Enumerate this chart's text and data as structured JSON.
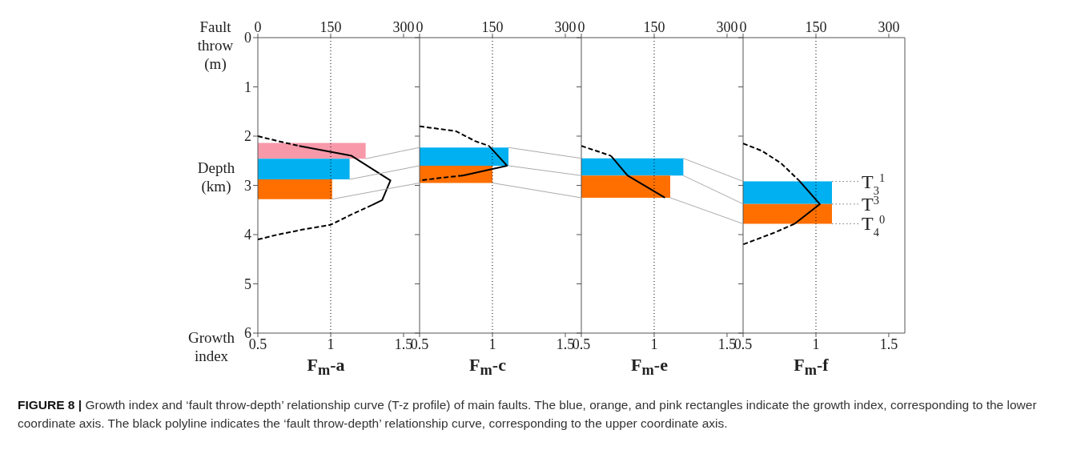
{
  "chart_data": [
    {
      "type": "histogram",
      "orientation": "horizontal",
      "title": "F$_{m}$-a",
      "xlabel": "Growth index",
      "x2label": "Fault throw (m)",
      "ylabel": "Depth (km)",
      "xlim": [
        0.5,
        1.61
      ],
      "xticks": [
        0.5,
        1,
        1.5
      ],
      "x2lim": [
        0,
        333
      ],
      "x2ticks": [
        0,
        150,
        300
      ],
      "ylim": [
        6,
        0
      ],
      "yticks": [
        0,
        1,
        2,
        3,
        4,
        5,
        6
      ],
      "ref_lines": [
        {
          "axis": "x",
          "value": 1,
          "line_style": "dotted",
          "color": "#000000"
        }
      ],
      "bins": [
        2.14,
        2.46,
        2.88,
        3.28
      ],
      "values": [
        1.24,
        1.13,
        1.01
      ],
      "colors": [
        "#f799a9",
        "#00b0f0",
        "#ff6f00"
      ],
      "series": [
        {
          "type": "line",
          "axis": "x2",
          "color": "#000000",
          "line_style": "dashed",
          "x": [
            2.0,
            2.1,
            2.2
          ],
          "values": [
            0,
            41,
            85
          ]
        },
        {
          "type": "line",
          "axis": "x2",
          "color": "#000000",
          "line_style": "solid",
          "x": [
            2.2,
            2.4,
            2.9,
            3.3,
            3.4
          ],
          "values": [
            85,
            193,
            273,
            256,
            235
          ]
        },
        {
          "type": "line",
          "axis": "x2",
          "color": "#000000",
          "line_style": "dashed",
          "x": [
            3.4,
            3.6,
            3.8,
            3.9,
            4.0,
            4.1
          ],
          "values": [
            235,
            191,
            150,
            91,
            41,
            0
          ]
        }
      ],
      "annotations": [
        "FIGURE 8 | Growth index and ‘fault throw-depth’ relationship curve (T-z profile) of main faults. The blue, orange, and pink rectangles indicate the growth index, corresponding to the lower coordinate axis. The black polyline indicates the ‘fault throw-depth’ relationship curve, corresponding to the upper coordinate axis."
      ]
    },
    {
      "type": "histogram",
      "orientation": "horizontal",
      "title": "F$_{m}$-c",
      "tick_labels": "x",
      "xlim": [
        0.5,
        1.61
      ],
      "xticks": [
        0.5,
        1,
        1.5
      ],
      "x2lim": [
        0,
        333
      ],
      "x2ticks": [
        0,
        150,
        300
      ],
      "ylim": [
        6,
        0
      ],
      "yticks": [
        0,
        1,
        2,
        3,
        4,
        5,
        6
      ],
      "ref_lines": [
        {
          "axis": "x",
          "value": 1,
          "line_style": "dotted",
          "color": "#000000"
        }
      ],
      "bins": [
        2.23,
        2.6,
        2.95
      ],
      "values": [
        1.11,
        1.0
      ],
      "colors": [
        "#00b0f0",
        "#ff6f00"
      ],
      "series": [
        {
          "type": "line",
          "axis": "x2",
          "color": "#000000",
          "line_style": "dashed",
          "x": [
            1.8,
            1.9,
            2.1,
            2.2
          ],
          "values": [
            0,
            75,
            114,
            143
          ]
        },
        {
          "type": "line",
          "axis": "x2",
          "color": "#000000",
          "line_style": "solid",
          "x": [
            2.2,
            2.6,
            2.8
          ],
          "values": [
            143,
            180,
            89
          ]
        },
        {
          "type": "line",
          "axis": "x2",
          "color": "#000000",
          "line_style": "dashed",
          "x": [
            2.8,
            2.85,
            2.9
          ],
          "values": [
            89,
            42,
            0
          ]
        }
      ]
    },
    {
      "type": "histogram",
      "orientation": "horizontal",
      "title": "F$_{m}$-e",
      "tick_labels": "x",
      "xlim": [
        0.5,
        1.61
      ],
      "xticks": [
        0.5,
        1,
        1.5
      ],
      "x2lim": [
        0,
        333
      ],
      "x2ticks": [
        0,
        150,
        300
      ],
      "ylim": [
        6,
        0
      ],
      "yticks": [
        0,
        1,
        2,
        3,
        4,
        5,
        6
      ],
      "ref_lines": [
        {
          "axis": "x",
          "value": 1,
          "line_style": "dotted",
          "color": "#000000"
        }
      ],
      "bins": [
        2.45,
        2.8,
        3.25
      ],
      "values": [
        1.2,
        1.11
      ],
      "colors": [
        "#00b0f0",
        "#ff6f00"
      ],
      "series": [
        {
          "type": "line",
          "axis": "x2",
          "color": "#000000",
          "line_style": "dashed",
          "x": [
            2.2,
            2.3,
            2.4
          ],
          "values": [
            0,
            31,
            61
          ]
        },
        {
          "type": "line",
          "axis": "x2",
          "color": "#000000",
          "line_style": "solid",
          "x": [
            2.4,
            2.8,
            3.25
          ],
          "values": [
            61,
            95,
            172
          ]
        }
      ]
    },
    {
      "type": "histogram",
      "orientation": "horizontal",
      "title": "F$_{m}$-f",
      "tick_labels": "x",
      "xlim": [
        0.5,
        1.61
      ],
      "xticks": [
        0.5,
        1,
        1.5
      ],
      "x2lim": [
        0,
        333
      ],
      "x2ticks": [
        0,
        150,
        300
      ],
      "ylim": [
        6,
        0
      ],
      "yticks": [
        0,
        1,
        2,
        3,
        4,
        5,
        6
      ],
      "ref_lines": [
        {
          "axis": "x",
          "value": 1,
          "line_style": "dotted",
          "color": "#000000"
        }
      ],
      "bins": [
        2.92,
        3.38,
        3.78
      ],
      "values": [
        1.11,
        1.11
      ],
      "colors": [
        "#00b0f0",
        "#ff6f00"
      ],
      "series": [
        {
          "type": "line",
          "axis": "x2",
          "color": "#000000",
          "line_style": "dashed",
          "x": [
            2.15,
            2.3,
            2.55,
            2.9
          ],
          "values": [
            0,
            39,
            78,
            115
          ]
        },
        {
          "type": "line",
          "axis": "x2",
          "color": "#000000",
          "line_style": "solid",
          "x": [
            2.9,
            3.38,
            3.78
          ],
          "values": [
            115,
            158,
            106
          ]
        },
        {
          "type": "line",
          "axis": "x2",
          "color": "#000000",
          "line_style": "dashed",
          "x": [
            3.78,
            3.95,
            4.2
          ],
          "values": [
            106,
            67,
            0
          ]
        }
      ],
      "annotations": [
        "T$_{3}$$^{1}$",
        "T$^{3}$",
        "T$_{4}$$^{0}$"
      ]
    }
  ]
}
